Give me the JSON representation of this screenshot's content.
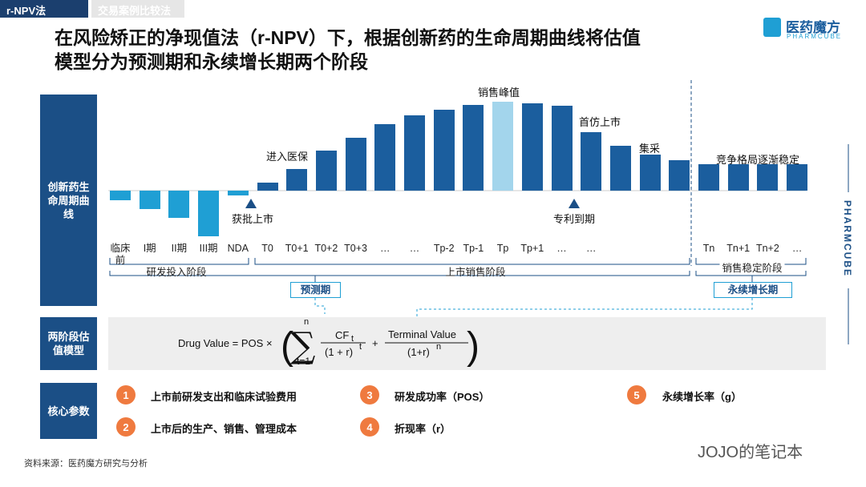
{
  "header": {
    "tabs": [
      "r-NPV法",
      "交易案例比较法"
    ],
    "title_lines": [
      "在风险矫正的净现值法（r-NPV）下，根据创新药的生命周期曲线将估值",
      "模型分为预测期和永续增长期两个阶段"
    ],
    "logo": {
      "name": "医药魔方",
      "sub": "PHARMCUBE"
    }
  },
  "side_labels": [
    "创新药生命周期曲线",
    "两阶段估值模型",
    "核心参数"
  ],
  "chart_data": {
    "type": "bar",
    "categories": [
      "临床前",
      "I期",
      "II期",
      "III期",
      "NDA",
      "T0",
      "T0+1",
      "T0+2",
      "T0+3",
      "…",
      "…",
      "Tp-2",
      "Tp-1",
      "Tp",
      "Tp+1",
      "…",
      "…",
      null,
      null,
      null,
      "Tn",
      "Tn+1",
      "Tn+2",
      "…"
    ],
    "values": [
      -12,
      -23,
      -34,
      -57,
      -6,
      10,
      27,
      50,
      66,
      83,
      94,
      101,
      107,
      111,
      109,
      106,
      73,
      56,
      45,
      38,
      33,
      33,
      33,
      33
    ],
    "colors": [
      "#1f9fd4",
      "#1f9fd4",
      "#1f9fd4",
      "#1f9fd4",
      "#1f9fd4",
      "#1b5e9e",
      "#1b5e9e",
      "#1b5e9e",
      "#1b5e9e",
      "#1b5e9e",
      "#1b5e9e",
      "#1b5e9e",
      "#1b5e9e",
      "#a3d5ec",
      "#1b5e9e",
      "#1b5e9e",
      "#1b5e9e",
      "#1b5e9e",
      "#1b5e9e",
      "#1b5e9e",
      "#1b5e9e",
      "#1b5e9e",
      "#1b5e9e",
      "#1b5e9e"
    ],
    "annotations": [
      "进入医保",
      "销售峰值",
      "首仿上市",
      "集采",
      "竞争格局逐渐稳定",
      "获批上市",
      "专利到期"
    ]
  },
  "phases": [
    "研发投入阶段",
    "上市销售阶段",
    "销售稳定阶段"
  ],
  "periods": [
    "预测期",
    "永续增长期"
  ],
  "formula": {
    "lhs": "Drug Value = POS ×",
    "sum_top": "n",
    "sum_bottom": "t=1",
    "cf": "CF",
    "cf_sub": "t",
    "den1": "(1 + r)",
    "den1_sup": "t",
    "plus": "+",
    "tv": "Terminal Value",
    "den2": "(1+r)",
    "den2_sup": "n"
  },
  "params": [
    {
      "num": "1",
      "text": "上市前研发支出和临床试验费用"
    },
    {
      "num": "2",
      "text": "上市后的生产、销售、管理成本"
    },
    {
      "num": "3",
      "text": "研发成功率（POS）"
    },
    {
      "num": "4",
      "text": "折现率（r）"
    },
    {
      "num": "5",
      "text": "永续增长率（g）"
    }
  ],
  "source": "资料来源：医药魔方研究与分析",
  "watermark": "JOJO的笔记本",
  "side_brand": "PHARMCUBE"
}
